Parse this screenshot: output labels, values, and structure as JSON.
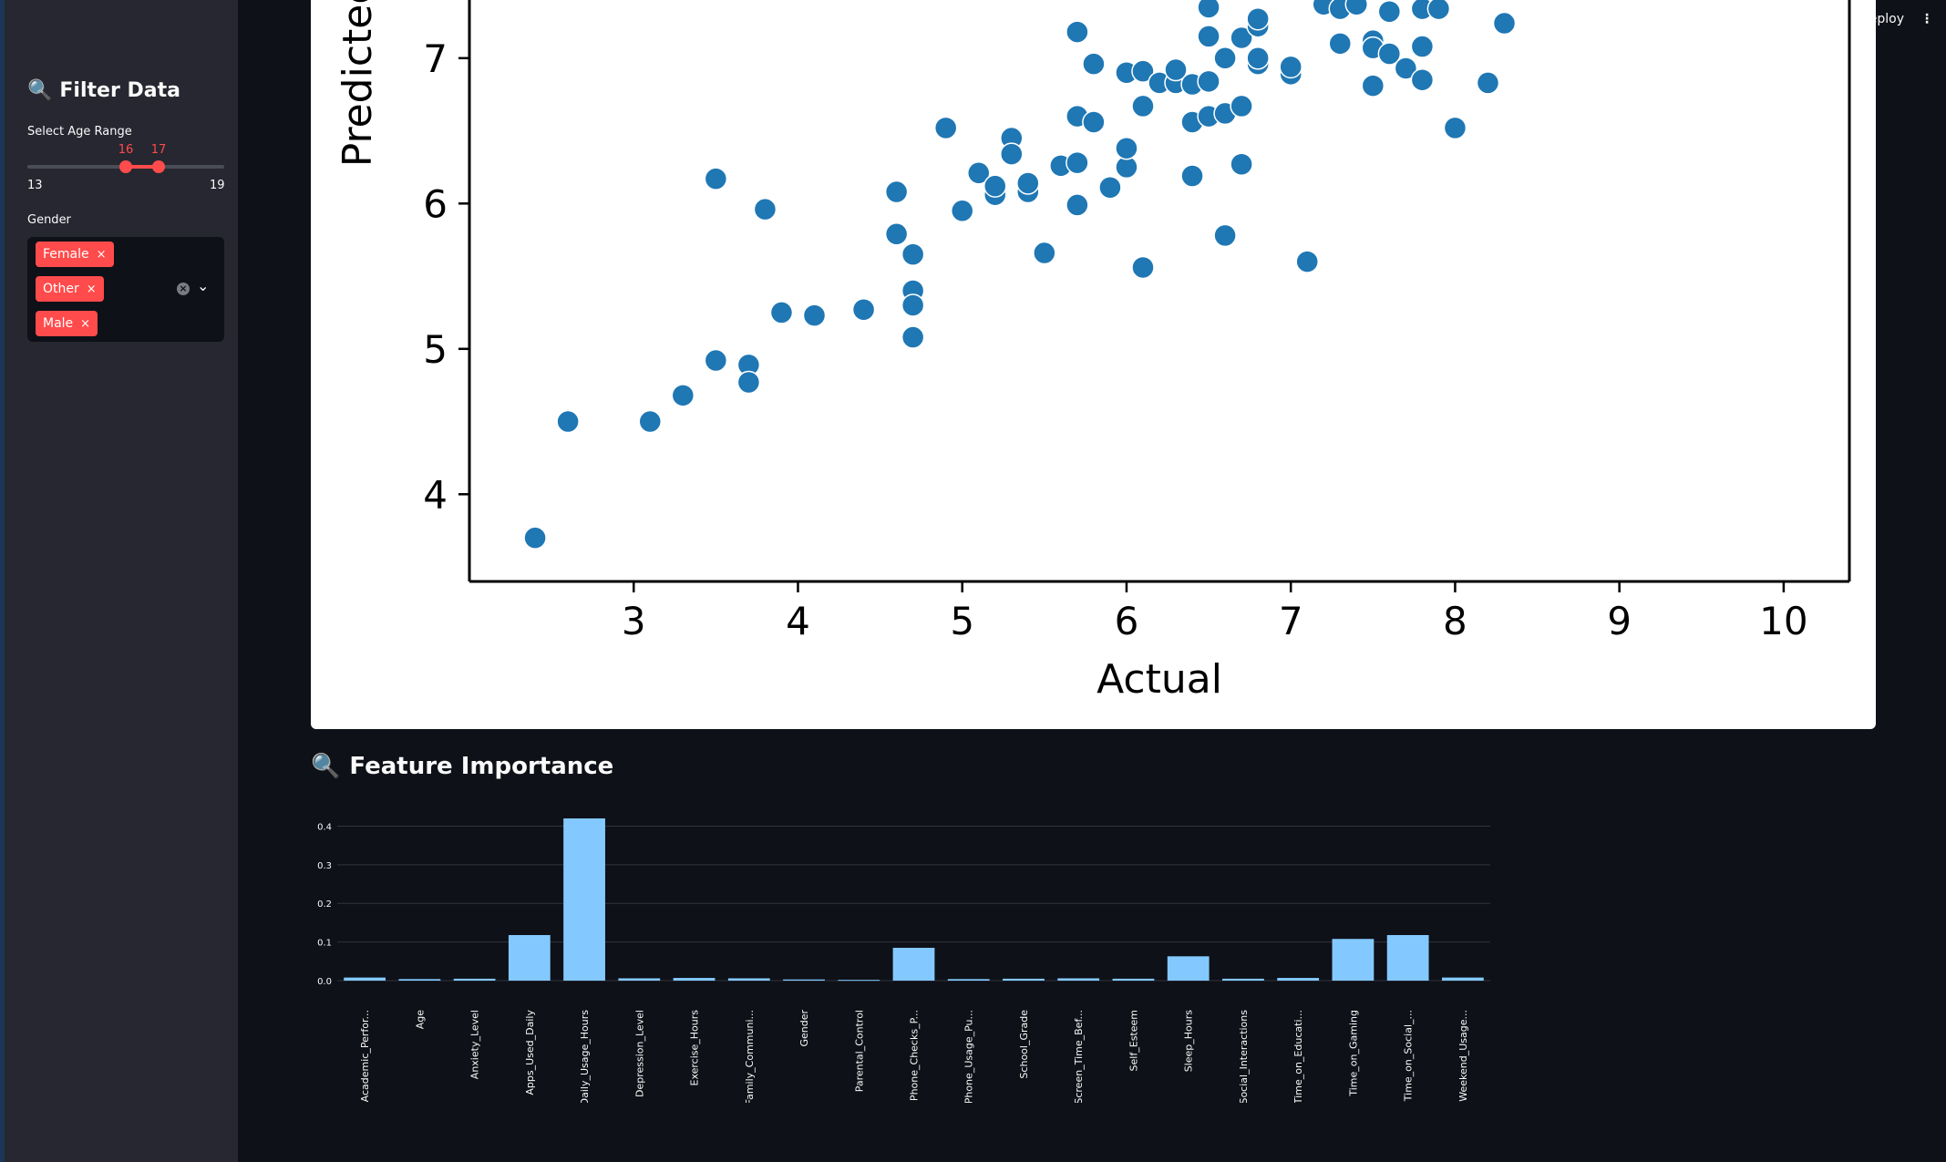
{
  "sidebar": {
    "title": "Filter Data",
    "title_icon": "magnifier-icon",
    "age_range": {
      "label": "Select Age Range",
      "min": 13,
      "max": 19,
      "low": 16,
      "high": 17
    },
    "gender": {
      "label": "Gender",
      "selected": [
        {
          "label": "Female",
          "remove": "×"
        },
        {
          "label": "Other",
          "remove": "×"
        },
        {
          "label": "Male",
          "remove": "×"
        }
      ],
      "clear_icon": "×",
      "dropdown_icon": "chevron-down-icon"
    }
  },
  "header": {
    "deploy_label": "eploy",
    "menu_icon": "⋮"
  },
  "feature_section": {
    "title": "Feature Importance",
    "title_icon": "magnifier-icon"
  },
  "accent_color": "#ff4b4b",
  "chart_data": [
    {
      "type": "scatter",
      "xlabel": "Actual",
      "ylabel": "Predicted",
      "xlim": [
        2.0,
        10.4
      ],
      "ylim": [
        3.4,
        7.4
      ],
      "xticks": [
        3,
        4,
        5,
        6,
        7,
        8,
        9,
        10
      ],
      "yticks": [
        4,
        5,
        6,
        7
      ],
      "point_color": "#1f77b4",
      "points": [
        [
          2.4,
          3.7
        ],
        [
          2.6,
          4.5
        ],
        [
          3.1,
          4.5
        ],
        [
          3.3,
          4.68
        ],
        [
          3.5,
          4.92
        ],
        [
          3.5,
          6.17
        ],
        [
          3.7,
          4.89
        ],
        [
          3.7,
          4.77
        ],
        [
          3.8,
          5.96
        ],
        [
          3.9,
          5.25
        ],
        [
          4.1,
          5.23
        ],
        [
          4.4,
          5.27
        ],
        [
          4.6,
          6.08
        ],
        [
          4.6,
          5.79
        ],
        [
          4.7,
          5.65
        ],
        [
          4.7,
          5.4
        ],
        [
          4.7,
          5.3
        ],
        [
          4.7,
          5.08
        ],
        [
          4.9,
          6.52
        ],
        [
          5.0,
          5.95
        ],
        [
          5.1,
          6.21
        ],
        [
          5.2,
          6.06
        ],
        [
          5.2,
          6.12
        ],
        [
          5.3,
          6.45
        ],
        [
          5.3,
          6.34
        ],
        [
          5.4,
          6.08
        ],
        [
          5.4,
          6.14
        ],
        [
          5.5,
          5.66
        ],
        [
          5.6,
          6.26
        ],
        [
          5.7,
          6.28
        ],
        [
          5.7,
          5.99
        ],
        [
          5.7,
          6.6
        ],
        [
          5.7,
          7.18
        ],
        [
          5.8,
          6.56
        ],
        [
          5.8,
          6.96
        ],
        [
          5.9,
          6.11
        ],
        [
          6.0,
          6.25
        ],
        [
          6.0,
          6.38
        ],
        [
          6.0,
          6.9
        ],
        [
          6.1,
          5.56
        ],
        [
          6.1,
          6.67
        ],
        [
          6.1,
          6.91
        ],
        [
          6.2,
          6.83
        ],
        [
          6.3,
          6.83
        ],
        [
          6.3,
          6.92
        ],
        [
          6.4,
          6.82
        ],
        [
          6.4,
          6.56
        ],
        [
          6.4,
          6.19
        ],
        [
          6.5,
          6.6
        ],
        [
          6.5,
          6.84
        ],
        [
          6.5,
          7.15
        ],
        [
          6.5,
          7.35
        ],
        [
          6.6,
          6.62
        ],
        [
          6.6,
          7.0
        ],
        [
          6.6,
          5.78
        ],
        [
          6.7,
          6.27
        ],
        [
          6.7,
          6.67
        ],
        [
          6.7,
          7.14
        ],
        [
          6.8,
          6.96
        ],
        [
          6.8,
          7.0
        ],
        [
          6.8,
          7.22
        ],
        [
          6.8,
          7.27
        ],
        [
          7.0,
          6.89
        ],
        [
          7.0,
          6.94
        ],
        [
          7.1,
          5.6
        ],
        [
          7.2,
          7.37
        ],
        [
          7.3,
          7.34
        ],
        [
          7.3,
          7.1
        ],
        [
          7.4,
          7.37
        ],
        [
          7.5,
          7.12
        ],
        [
          7.5,
          7.07
        ],
        [
          7.5,
          6.81
        ],
        [
          7.6,
          7.03
        ],
        [
          7.6,
          7.32
        ],
        [
          7.7,
          6.93
        ],
        [
          7.8,
          6.85
        ],
        [
          7.8,
          7.08
        ],
        [
          7.8,
          7.34
        ],
        [
          7.9,
          7.34
        ],
        [
          8.0,
          6.52
        ],
        [
          8.2,
          6.83
        ],
        [
          8.3,
          7.24
        ]
      ]
    },
    {
      "type": "bar",
      "color": "#83c9ff",
      "ylim": [
        0,
        0.42
      ],
      "yticks": [
        "0.0",
        "0.1",
        "0.2",
        "0.3",
        "0.4"
      ],
      "categories": [
        "Academic_Perfor...",
        "Age",
        "Anxiety_Level",
        "Apps_Used_Daily",
        "Daily_Usage_Hours",
        "Depression_Level",
        "Exercise_Hours",
        "Family_Communi...",
        "Gender",
        "Parental_Control",
        "Phone_Checks_P...",
        "Phone_Usage_Pu...",
        "School_Grade",
        "Screen_Time_Bef...",
        "Self_Esteem",
        "Sleep_Hours",
        "Social_Interactions",
        "Time_on_Educati...",
        "Time_on_Gaming",
        "Time_on_Social_...",
        "Weekend_Usage..."
      ],
      "values": [
        0.008,
        0.004,
        0.005,
        0.118,
        0.42,
        0.006,
        0.007,
        0.006,
        0.003,
        0.002,
        0.085,
        0.004,
        0.005,
        0.006,
        0.005,
        0.063,
        0.005,
        0.007,
        0.108,
        0.118,
        0.008
      ]
    }
  ]
}
